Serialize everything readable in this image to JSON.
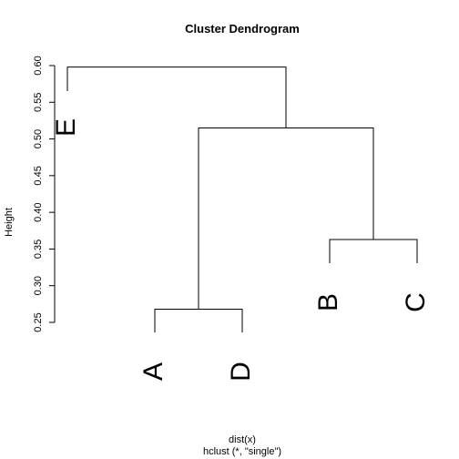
{
  "chart_data": {
    "type": "dendrogram",
    "title": "Cluster Dendrogram",
    "ylabel": "Height",
    "xlabel": "dist(x)",
    "sublabel": "hclust (*, \"single\")",
    "ylim": [
      0.25,
      0.6
    ],
    "yticks": [
      "0.25",
      "0.30",
      "0.35",
      "0.40",
      "0.45",
      "0.50",
      "0.55",
      "0.60"
    ],
    "leaves": [
      "E",
      "A",
      "D",
      "B",
      "C"
    ],
    "merges": [
      {
        "left": "A",
        "right": "D",
        "height": 0.268
      },
      {
        "left": "B",
        "right": "C",
        "height": 0.363
      },
      {
        "left": "A-D",
        "right": "B-C",
        "height": 0.515
      },
      {
        "left": "E",
        "right": "A-D-B-C",
        "height": 0.598
      }
    ]
  }
}
